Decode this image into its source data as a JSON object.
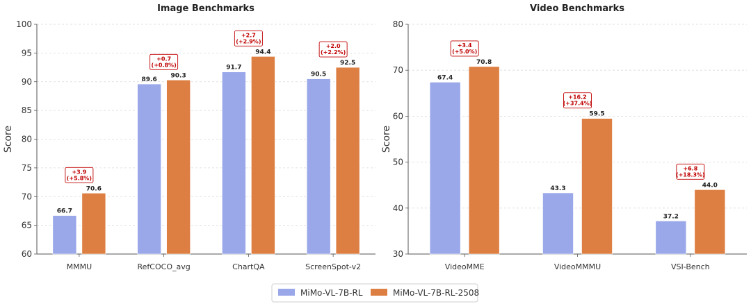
{
  "chart_data": [
    {
      "type": "bar",
      "title": "Image Benchmarks",
      "ylabel": "Score",
      "ylim": [
        60,
        100
      ],
      "yticks": [
        60,
        65,
        70,
        75,
        80,
        85,
        90,
        95,
        100
      ],
      "grid": "horizontal dashed",
      "categories": [
        "MMMU",
        "RefCOCO_avg",
        "ChartQA",
        "ScreenSpot-v2"
      ],
      "series": [
        {
          "name": "MiMo-VL-7B-RL",
          "values": [
            66.7,
            89.6,
            91.7,
            90.5
          ],
          "labels": [
            "66.7",
            "89.6",
            "91.7",
            "90.5"
          ]
        },
        {
          "name": "MiMo-VL-7B-RL-2508",
          "values": [
            70.6,
            90.3,
            94.4,
            92.5
          ],
          "labels": [
            "70.6",
            "90.3",
            "94.4",
            "92.5"
          ]
        }
      ],
      "annotations": [
        {
          "line1": "+3.9",
          "line2": "(+5.8%)"
        },
        {
          "line1": "+0.7",
          "line2": "(+0.8%)"
        },
        {
          "line1": "+2.7",
          "line2": "(+2.9%)"
        },
        {
          "line1": "+2.0",
          "line2": "(+2.2%)"
        }
      ]
    },
    {
      "type": "bar",
      "title": "Video Benchmarks",
      "ylabel": "Score",
      "ylim": [
        30,
        80
      ],
      "yticks": [
        30,
        40,
        50,
        60,
        70,
        80
      ],
      "grid": "horizontal dashed",
      "categories": [
        "VideoMME",
        "VideoMMMU",
        "VSI-Bench"
      ],
      "series": [
        {
          "name": "MiMo-VL-7B-RL",
          "values": [
            67.4,
            43.3,
            37.2
          ],
          "labels": [
            "67.4",
            "43.3",
            "37.2"
          ]
        },
        {
          "name": "MiMo-VL-7B-RL-2508",
          "values": [
            70.8,
            59.5,
            44.0
          ],
          "labels": [
            "70.8",
            "59.5",
            "44.0"
          ]
        }
      ],
      "annotations": [
        {
          "line1": "+3.4",
          "line2": "(+5.0%)"
        },
        {
          "line1": "+16.2",
          "line2": "(+37.4%)"
        },
        {
          "line1": "+6.8",
          "line2": "(+18.3%)"
        }
      ]
    }
  ],
  "legend": {
    "position": "bottom-center",
    "items": [
      {
        "label": "MiMo-VL-7B-RL",
        "color": "#9aa8ea"
      },
      {
        "label": "MiMo-VL-7B-RL-2508",
        "color": "#dd7f43"
      }
    ]
  },
  "colors": {
    "series1": "#9aa8ea",
    "series2": "#dd7f43",
    "annotation": "#c00000",
    "grid": "#d9d9d9"
  }
}
